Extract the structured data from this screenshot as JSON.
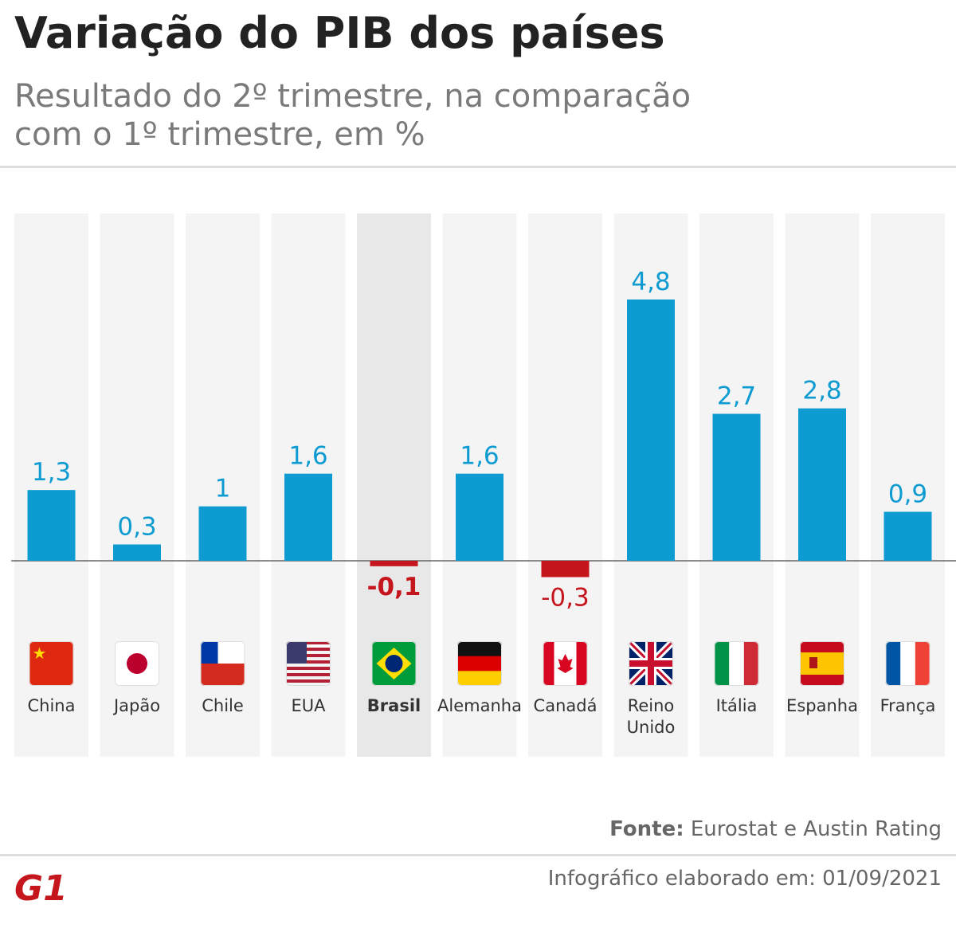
{
  "chart_data": {
    "type": "bar",
    "title": "Variação do PIB dos países",
    "subtitle": [
      "Resultado do 2º trimestre, na comparação",
      "com o 1º trimestre, em %"
    ],
    "categories": [
      "China",
      "Japão",
      "Chile",
      "EUA",
      "Brasil",
      "Alemanha",
      "Canadá",
      "Reino Unido",
      "Itália",
      "Espanha",
      "França"
    ],
    "values": [
      1.3,
      0.3,
      1,
      1.6,
      -0.1,
      1.6,
      -0.3,
      4.8,
      2.7,
      2.8,
      0.9
    ],
    "value_labels": [
      "1,3",
      "0,3",
      "1",
      "1,6",
      "-0,1",
      "1,6",
      "-0,3",
      "4,8",
      "2,7",
      "2,8",
      "0,9"
    ],
    "color": "#0e9bd1",
    "negative_color": "#c4161c",
    "highlight_index": 4,
    "source_label": "Fonte:",
    "source": "Eurostat e Austin Rating",
    "footer": "Infográfico elaborado em: 01/09/2021",
    "logo": "G1"
  }
}
